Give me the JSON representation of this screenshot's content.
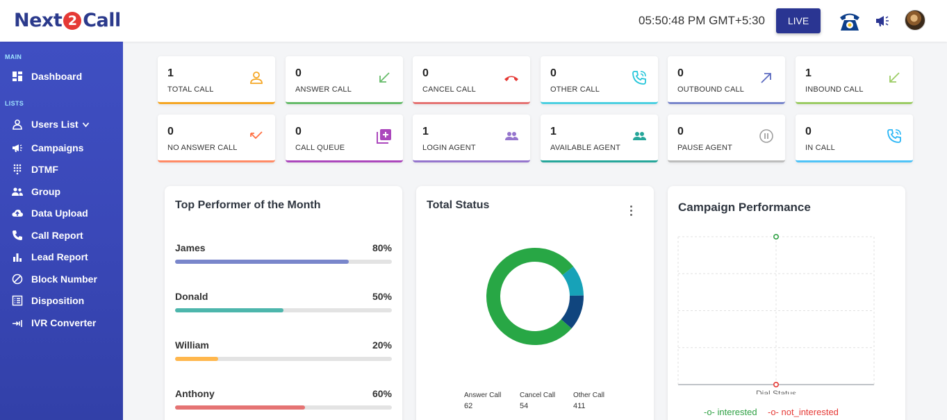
{
  "header": {
    "logo": {
      "part1": "Next",
      "part2": "2",
      "part3": "Call"
    },
    "clock": "05:50:48 PM GMT+5:30",
    "live_label": "LIVE"
  },
  "sidebar": {
    "main_label": "MAIN",
    "lists_label": "LISTS",
    "items": [
      {
        "label": "Dashboard",
        "icon": "dashboard-icon"
      },
      {
        "label": "Users List",
        "icon": "user-icon"
      },
      {
        "label": "Campaigns",
        "icon": "megaphone-icon"
      },
      {
        "label": "DTMF",
        "icon": "dialpad-icon"
      },
      {
        "label": "Group",
        "icon": "group-icon"
      },
      {
        "label": "Data Upload",
        "icon": "cloud-upload-icon"
      },
      {
        "label": "Call Report",
        "icon": "phone-icon"
      },
      {
        "label": "Lead Report",
        "icon": "bar-chart-icon"
      },
      {
        "label": "Block Number",
        "icon": "block-icon"
      },
      {
        "label": "Disposition",
        "icon": "list-icon"
      },
      {
        "label": "IVR Converter",
        "icon": "ivr-icon"
      }
    ]
  },
  "stats": [
    {
      "value": "1",
      "label": "TOTAL CALL",
      "icon": "user-outline-icon",
      "color": "#f5a623"
    },
    {
      "value": "0",
      "label": "ANSWER CALL",
      "icon": "arrow-down-left-icon",
      "color": "#66bb6a"
    },
    {
      "value": "0",
      "label": "CANCEL CALL",
      "icon": "call-end-icon",
      "color": "#e57373"
    },
    {
      "value": "0",
      "label": "OTHER CALL",
      "icon": "phone-ring-icon",
      "color": "#4dd0e1"
    },
    {
      "value": "0",
      "label": "OUTBOUND CALL",
      "icon": "arrow-up-right-icon",
      "color": "#7986cb"
    },
    {
      "value": "1",
      "label": "INBOUND CALL",
      "icon": "arrow-down-left-icon",
      "color": "#9ccc65"
    },
    {
      "value": "0",
      "label": "NO ANSWER CALL",
      "icon": "missed-call-icon",
      "color": "#ff8a65"
    },
    {
      "value": "0",
      "label": "CALL QUEUE",
      "icon": "queue-add-icon",
      "color": "#ab47bc"
    },
    {
      "value": "1",
      "label": "LOGIN AGENT",
      "icon": "people-icon",
      "color": "#9575cd"
    },
    {
      "value": "1",
      "label": "AVAILABLE AGENT",
      "icon": "people-icon",
      "color": "#26a69a"
    },
    {
      "value": "0",
      "label": "PAUSE AGENT",
      "icon": "pause-icon",
      "color": "#bdbdbd"
    },
    {
      "value": "0",
      "label": "IN CALL",
      "icon": "phone-ring-icon",
      "color": "#4fc3f7"
    }
  ],
  "top_performer": {
    "title": "Top Performer of the Month",
    "people": [
      {
        "name": "James",
        "percent": "80%",
        "value": 80,
        "color": "#7986cb"
      },
      {
        "name": "Donald",
        "percent": "50%",
        "value": 50,
        "color": "#4db6ac"
      },
      {
        "name": "William",
        "percent": "20%",
        "value": 20,
        "color": "#ffb74d"
      },
      {
        "name": "Anthony",
        "percent": "60%",
        "value": 60,
        "color": "#e57373"
      }
    ]
  },
  "total_status": {
    "title": "Total Status",
    "legend": [
      {
        "label": "Answer Call",
        "value": "62"
      },
      {
        "label": "Cancel Call",
        "value": "54"
      },
      {
        "label": "Other Call",
        "value": "411"
      }
    ]
  },
  "campaign": {
    "title": "Campaign Performance",
    "xlabel": "Dial Status",
    "series": [
      {
        "name": "interested",
        "color": "#2ea043"
      },
      {
        "name": "not_interested",
        "color": "#e53935"
      }
    ]
  },
  "chart_data": [
    {
      "type": "pie",
      "title": "Total Status",
      "categories": [
        "Answer Call",
        "Cancel Call",
        "Other Call"
      ],
      "values": [
        62,
        54,
        411
      ],
      "colors": [
        "#10457e",
        "#17a2b8",
        "#28a745"
      ]
    },
    {
      "type": "line",
      "title": "Campaign Performance",
      "xlabel": "Dial Status",
      "categories": [
        ""
      ],
      "series": [
        {
          "name": "interested",
          "values": [
            1
          ]
        },
        {
          "name": "not_interested",
          "values": [
            0
          ]
        }
      ],
      "ylim": [
        0,
        1
      ]
    }
  ]
}
